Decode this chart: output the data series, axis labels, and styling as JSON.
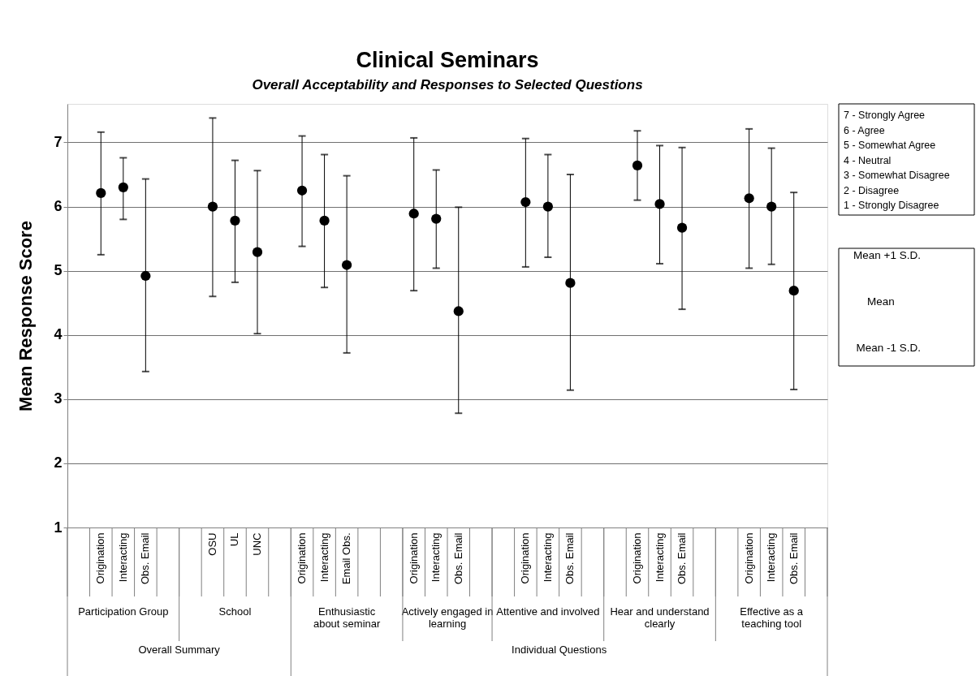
{
  "chart_data": {
    "type": "scatter",
    "title": "Clinical Seminars",
    "subtitle": "Overall Acceptability and Responses to Selected Questions",
    "ylabel": "Mean Response Score",
    "categories": [
      null,
      "Origination",
      "Interacting",
      "Obs. Email",
      null,
      null,
      "OSU",
      "UL",
      "UNC",
      null,
      "Origination",
      "Interacting",
      "Email Obs.",
      null,
      null,
      "Origination",
      "Interacting",
      "Obs. Email",
      null,
      null,
      "Origination",
      "Interacting",
      "Obs. Email",
      null,
      null,
      "Origination",
      "Interacting",
      "Obs. Email",
      null,
      null,
      "Origination",
      "Interacting",
      "Obs. Email",
      null
    ],
    "series": [
      {
        "color": "#000000",
        "values": [
          null,
          6.21,
          6.3,
          4.92,
          null,
          null,
          6.0,
          5.78,
          5.29,
          null,
          6.25,
          5.78,
          5.09,
          null,
          null,
          5.89,
          5.81,
          4.37,
          null,
          null,
          6.07,
          6.0,
          4.81,
          null,
          null,
          6.64,
          6.04,
          5.67,
          null,
          null,
          6.13,
          6.0,
          4.69,
          null
        ],
        "errors": [
          null,
          [
            5.25,
            7.16
          ],
          [
            5.8,
            6.76
          ],
          [
            3.43,
            6.43
          ],
          null,
          null,
          [
            4.6,
            7.38
          ],
          [
            4.82,
            6.72
          ],
          [
            4.02,
            6.56
          ],
          null,
          [
            5.38,
            7.1
          ],
          [
            4.74,
            6.81
          ],
          [
            3.72,
            6.48
          ],
          null,
          null,
          [
            4.69,
            7.07
          ],
          [
            5.04,
            6.57
          ],
          [
            2.78,
            5.99
          ],
          null,
          null,
          [
            5.06,
            7.06
          ],
          [
            5.21,
            6.81
          ],
          [
            3.14,
            6.5
          ],
          null,
          null,
          [
            6.1,
            7.18
          ],
          [
            5.11,
            6.95
          ],
          [
            4.4,
            6.92
          ],
          null,
          null,
          [
            5.04,
            7.21
          ],
          [
            5.1,
            6.91
          ],
          [
            3.15,
            6.22
          ],
          null
        ]
      }
    ],
    "ylim": [
      1,
      7.6
    ],
    "yticks": [
      1,
      2,
      3,
      4,
      5,
      6,
      7
    ],
    "grid": "y",
    "marker": "circle",
    "annotations": [
      "Participation Group",
      "School",
      "Enthusiastic\nabout seminar",
      "Actively engaged in\nlearning",
      "Attentive and involved",
      "Hear and understand\nclearly",
      "Effective as a\nteaching tool",
      "Overall Summary",
      "Individual Questions",
      "7 - Strongly Agree",
      "6 - Agree",
      "5 - Somewhat Agree",
      "4 - Neutral",
      "3 - Somewhat Disagree",
      "2 - Disagree",
      "1 - Strongly Disagree",
      "Mean +1 S.D.",
      "Mean",
      "Mean -1 S.D."
    ]
  }
}
